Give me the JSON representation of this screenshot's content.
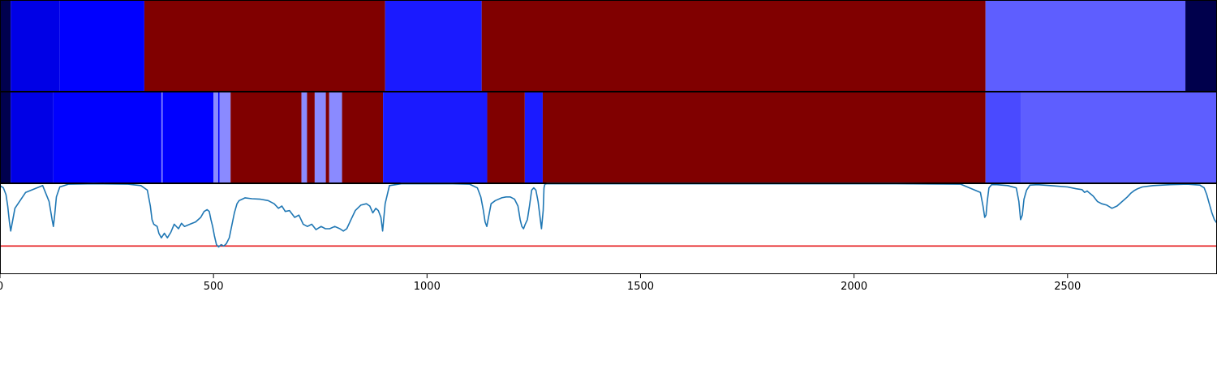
{
  "chart_data": [
    {
      "type": "heatmap",
      "title": "",
      "xlim": [
        0,
        2850
      ],
      "segments": [
        {
          "start": 0,
          "end": 25,
          "color": "#00004e"
        },
        {
          "start": 25,
          "end": 140,
          "color": "#0000e6"
        },
        {
          "start": 140,
          "end": 338,
          "color": "#0000ff"
        },
        {
          "start": 338,
          "end": 902,
          "color": "#800000"
        },
        {
          "start": 902,
          "end": 1128,
          "color": "#1a1aff"
        },
        {
          "start": 1128,
          "end": 2308,
          "color": "#800000"
        },
        {
          "start": 2308,
          "end": 2776,
          "color": "#5e5eff"
        },
        {
          "start": 2776,
          "end": 2850,
          "color": "#00004c"
        }
      ]
    },
    {
      "type": "heatmap",
      "title": "",
      "xlim": [
        0,
        2850
      ],
      "segments": [
        {
          "start": 0,
          "end": 25,
          "color": "#00004e"
        },
        {
          "start": 25,
          "end": 125,
          "color": "#0000e6"
        },
        {
          "start": 125,
          "end": 378,
          "color": "#0000ff"
        },
        {
          "start": 378,
          "end": 381,
          "color": "#8a8aff"
        },
        {
          "start": 381,
          "end": 500,
          "color": "#0000ff"
        },
        {
          "start": 500,
          "end": 511,
          "color": "#8a8aff"
        },
        {
          "start": 511,
          "end": 514,
          "color": "#0000ff"
        },
        {
          "start": 514,
          "end": 540,
          "color": "#8a8aff"
        },
        {
          "start": 540,
          "end": 706,
          "color": "#800000"
        },
        {
          "start": 706,
          "end": 719,
          "color": "#8a8aff"
        },
        {
          "start": 719,
          "end": 737,
          "color": "#800000"
        },
        {
          "start": 737,
          "end": 763,
          "color": "#8a8aff"
        },
        {
          "start": 763,
          "end": 771,
          "color": "#800000"
        },
        {
          "start": 771,
          "end": 801,
          "color": "#8a8aff"
        },
        {
          "start": 801,
          "end": 897,
          "color": "#800000"
        },
        {
          "start": 897,
          "end": 1141,
          "color": "#1a1aff"
        },
        {
          "start": 1141,
          "end": 1229,
          "color": "#800000"
        },
        {
          "start": 1229,
          "end": 1271,
          "color": "#1a1aff"
        },
        {
          "start": 1271,
          "end": 2308,
          "color": "#800000"
        },
        {
          "start": 2308,
          "end": 2391,
          "color": "#4a4aff"
        },
        {
          "start": 2391,
          "end": 2850,
          "color": "#5e5eff"
        }
      ]
    },
    {
      "type": "line",
      "title": "",
      "xlabel": "",
      "ylabel": "",
      "xlim": [
        0,
        2850
      ],
      "ylim": [
        -1.0,
        1.0
      ],
      "x_ticks": [
        0,
        500,
        1000,
        1500,
        2000,
        2500
      ],
      "x_tick_labels": [
        "0",
        "500",
        "1000",
        "1500",
        "2000",
        "2500"
      ],
      "threshold": -0.38,
      "threshold_color": "#e41a1c",
      "line_color": "#1f77b4",
      "series": [
        {
          "x": [
            0,
            8,
            14,
            18,
            22,
            25,
            35,
            60,
            100,
            115,
            122,
            125,
            128,
            132,
            140,
            160,
            220,
            300,
            330,
            345,
            352,
            356,
            360,
            368,
            372,
            378,
            385,
            392,
            400,
            408,
            418,
            425,
            432,
            445,
            458,
            470,
            478,
            485,
            490,
            494,
            498,
            502,
            507,
            512,
            518,
            524,
            530,
            537,
            543,
            549,
            555,
            560,
            567,
            574,
            590,
            610,
            628,
            642,
            652,
            660,
            668,
            678,
            690,
            700,
            710,
            720,
            730,
            740,
            752,
            762,
            772,
            784,
            796,
            804,
            812,
            822,
            832,
            845,
            858,
            866,
            873,
            880,
            886,
            892,
            896,
            902,
            912,
            940,
            1000,
            1060,
            1100,
            1118,
            1126,
            1132,
            1136,
            1140,
            1144,
            1150,
            1160,
            1175,
            1185,
            1195,
            1205,
            1213,
            1218,
            1222,
            1226,
            1230,
            1235,
            1240,
            1245,
            1250,
            1255,
            1260,
            1264,
            1268,
            1272,
            1274,
            1276,
            1280,
            1290,
            1320,
            1400,
            1600,
            1900,
            2100,
            2250,
            2296,
            2302,
            2306,
            2309,
            2312,
            2316,
            2322,
            2335,
            2360,
            2380,
            2386,
            2390,
            2394,
            2398,
            2404,
            2412,
            2430,
            2460,
            2500,
            2520,
            2534,
            2540,
            2546,
            2552,
            2560,
            2570,
            2580,
            2592,
            2604,
            2616,
            2628,
            2640,
            2648,
            2656,
            2664,
            2675,
            2700,
            2740,
            2780,
            2810,
            2820,
            2826,
            2832,
            2838,
            2844,
            2850
          ],
          "y": [
            0.95,
            0.9,
            0.75,
            0.5,
            0.15,
            -0.05,
            0.45,
            0.8,
            0.95,
            0.6,
            0.2,
            0.05,
            0.3,
            0.7,
            0.92,
            0.98,
            0.99,
            0.98,
            0.95,
            0.85,
            0.5,
            0.2,
            0.1,
            0.05,
            -0.1,
            -0.2,
            -0.1,
            -0.2,
            -0.08,
            0.1,
            0.0,
            0.12,
            0.05,
            0.1,
            0.15,
            0.25,
            0.38,
            0.42,
            0.38,
            0.2,
            0.05,
            -0.15,
            -0.35,
            -0.4,
            -0.35,
            -0.38,
            -0.33,
            -0.2,
            0.08,
            0.35,
            0.55,
            0.62,
            0.65,
            0.68,
            0.66,
            0.65,
            0.62,
            0.55,
            0.45,
            0.5,
            0.38,
            0.4,
            0.25,
            0.3,
            0.1,
            0.05,
            0.1,
            -0.02,
            0.05,
            0.0,
            0.0,
            0.05,
            0.0,
            -0.05,
            0.0,
            0.2,
            0.4,
            0.52,
            0.55,
            0.5,
            0.35,
            0.45,
            0.4,
            0.25,
            -0.05,
            0.55,
            0.95,
            0.99,
            0.99,
            0.99,
            0.98,
            0.9,
            0.7,
            0.4,
            0.15,
            0.05,
            0.25,
            0.55,
            0.62,
            0.68,
            0.7,
            0.7,
            0.65,
            0.5,
            0.2,
            0.05,
            0.0,
            0.1,
            0.2,
            0.5,
            0.85,
            0.9,
            0.85,
            0.6,
            0.3,
            0.0,
            0.4,
            0.9,
            0.98,
            0.99,
            0.99,
            0.99,
            0.99,
            0.99,
            0.99,
            0.99,
            0.98,
            0.8,
            0.5,
            0.25,
            0.3,
            0.6,
            0.9,
            0.97,
            0.97,
            0.95,
            0.9,
            0.6,
            0.2,
            0.3,
            0.65,
            0.85,
            0.96,
            0.97,
            0.95,
            0.92,
            0.88,
            0.86,
            0.8,
            0.83,
            0.78,
            0.72,
            0.6,
            0.55,
            0.52,
            0.45,
            0.5,
            0.6,
            0.7,
            0.78,
            0.84,
            0.88,
            0.92,
            0.95,
            0.97,
            0.98,
            0.96,
            0.9,
            0.75,
            0.55,
            0.35,
            0.2,
            0.12
          ]
        }
      ]
    }
  ]
}
